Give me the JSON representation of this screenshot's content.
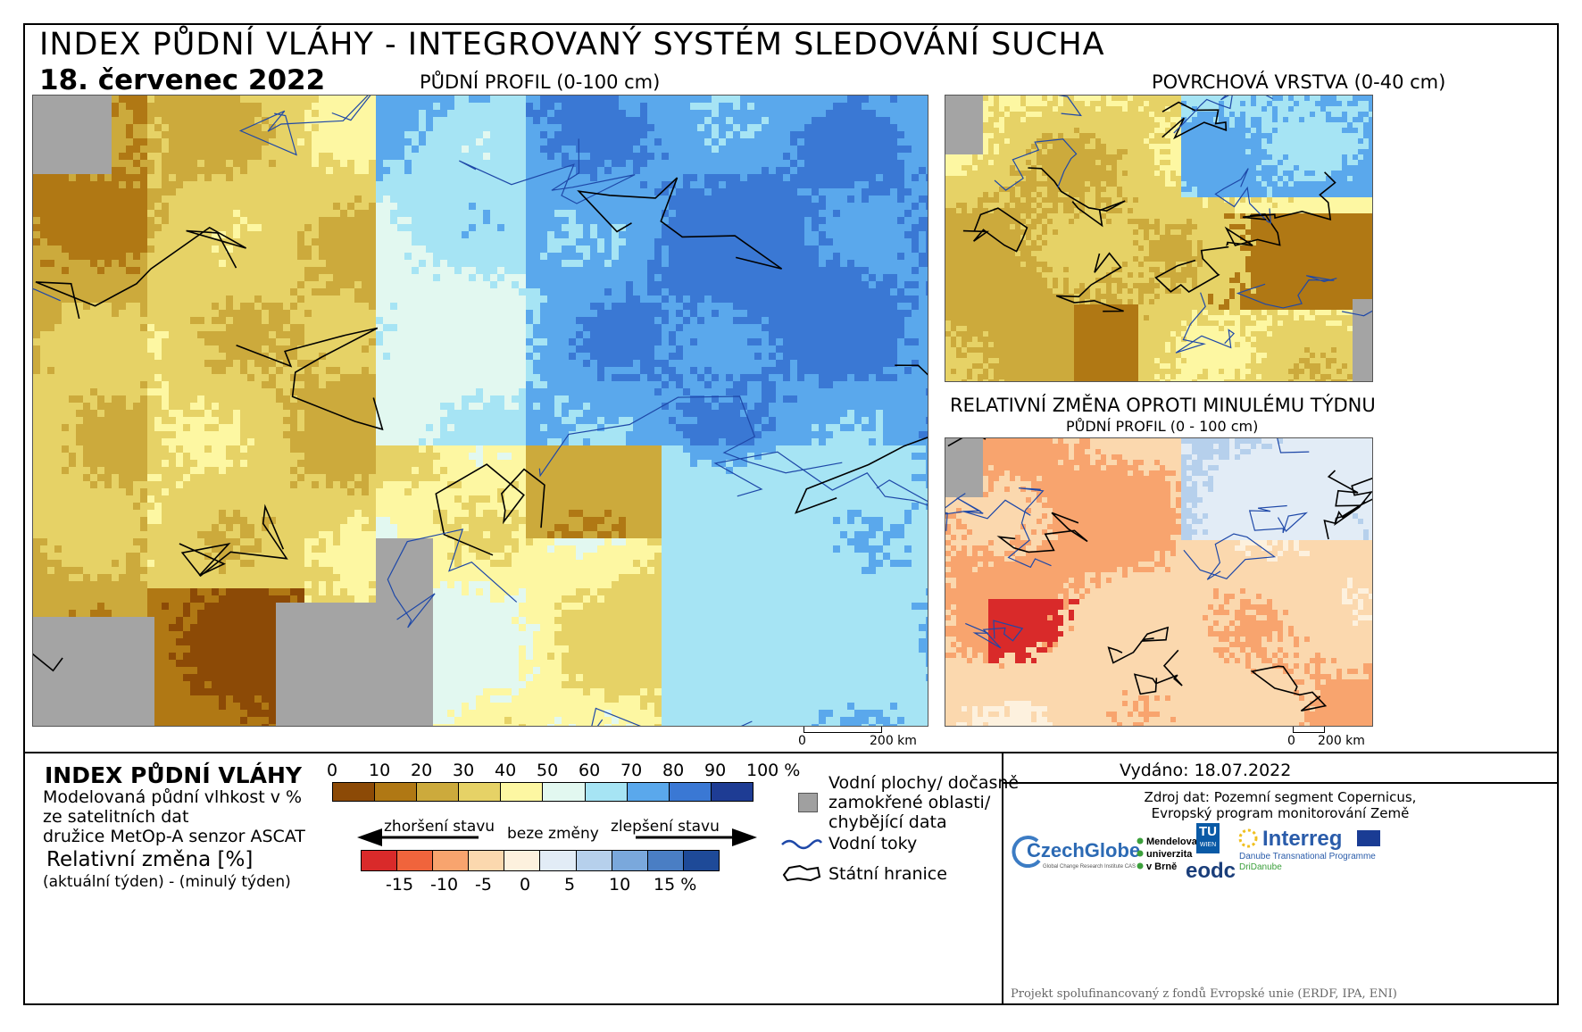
{
  "header": {
    "title": "INDEX PŮDNÍ VLÁHY - INTEGROVANÝ SYSTÉM SLEDOVÁNÍ SUCHA",
    "date": "18. červenec 2022"
  },
  "maps": {
    "main_label": "PŮDNÍ PROFIL (0-100 cm)",
    "surface_label": "POVRCHOVÁ VRSTVA (0-40 cm)",
    "change_label": "RELATIVNÍ ZMĚNA OPROTI MINULÉMU TÝDNU",
    "change_sublabel": "PŮDNÍ PROFIL (0 - 100 cm)",
    "scale_zero": "0",
    "scale_main_end": "200 km",
    "scale_small_end": "200 km"
  },
  "legend": {
    "index_title": "INDEX PŮDNÍ VLÁHY",
    "index_desc_1": "Modelovaná půdní vlhkost v %",
    "index_desc_2": "ze satelitních dat",
    "index_desc_3": "družice MetOp-A senzor ASCAT",
    "rel_title": "Relativní změna [%]",
    "rel_desc": "(aktuální týden) - (minulý týden)",
    "index_ticks": [
      "0",
      "10",
      "20",
      "30",
      "40",
      "50",
      "60",
      "70",
      "80",
      "90",
      "100 %"
    ],
    "index_colors": [
      "#8c4a06",
      "#b07814",
      "#ccaa3c",
      "#e6d266",
      "#fdf7a2",
      "#e2f8f0",
      "#a6e4f4",
      "#5aa8ec",
      "#3a78d4",
      "#1e3c94"
    ],
    "worse_label": "zhoršení stavu",
    "nochange_label": "beze změny",
    "better_label": "zlepšení stavu",
    "change_ticks": [
      "-15",
      "-10",
      "-5",
      "0",
      "5",
      "10",
      "15 %"
    ],
    "change_colors": [
      "#d92a2a",
      "#f0643c",
      "#f8a46e",
      "#fbd8ae",
      "#fdf1de",
      "#e2ecf6",
      "#b6d0ec",
      "#7aa8dc",
      "#4a7ec4",
      "#1e4a98"
    ],
    "water_label_1": "Vodní plochy/ dočasně",
    "water_label_2": "zamokřené oblasti/",
    "water_label_3": "chybějící data",
    "rivers_label": "Vodní toky",
    "borders_label": "Státní hranice"
  },
  "info": {
    "issued": "Vydáno: 18.07.2022",
    "source_1": "Zdroj dat: Pozemní segment Copernicus,",
    "source_2": "Evropský program monitorování Země",
    "logo_czechglobe": "CzechGlobe",
    "logo_czechglobe_sub": "Global Change Research Institute CAS",
    "logo_mendel_1": "Mendelova",
    "logo_mendel_2": "univerzita",
    "logo_mendel_3": "v Brně",
    "logo_tu": "TU",
    "logo_tu_sub": "WIEN",
    "logo_eodc": "eodc",
    "logo_interreg": "Interreg",
    "logo_interreg_sub": "Danube Transnational Programme",
    "logo_interreg_sub2": "DriDanube",
    "footer": "Projekt spolufinancovaný z fondů Evropské unie (ERDF, IPA, ENI)"
  }
}
